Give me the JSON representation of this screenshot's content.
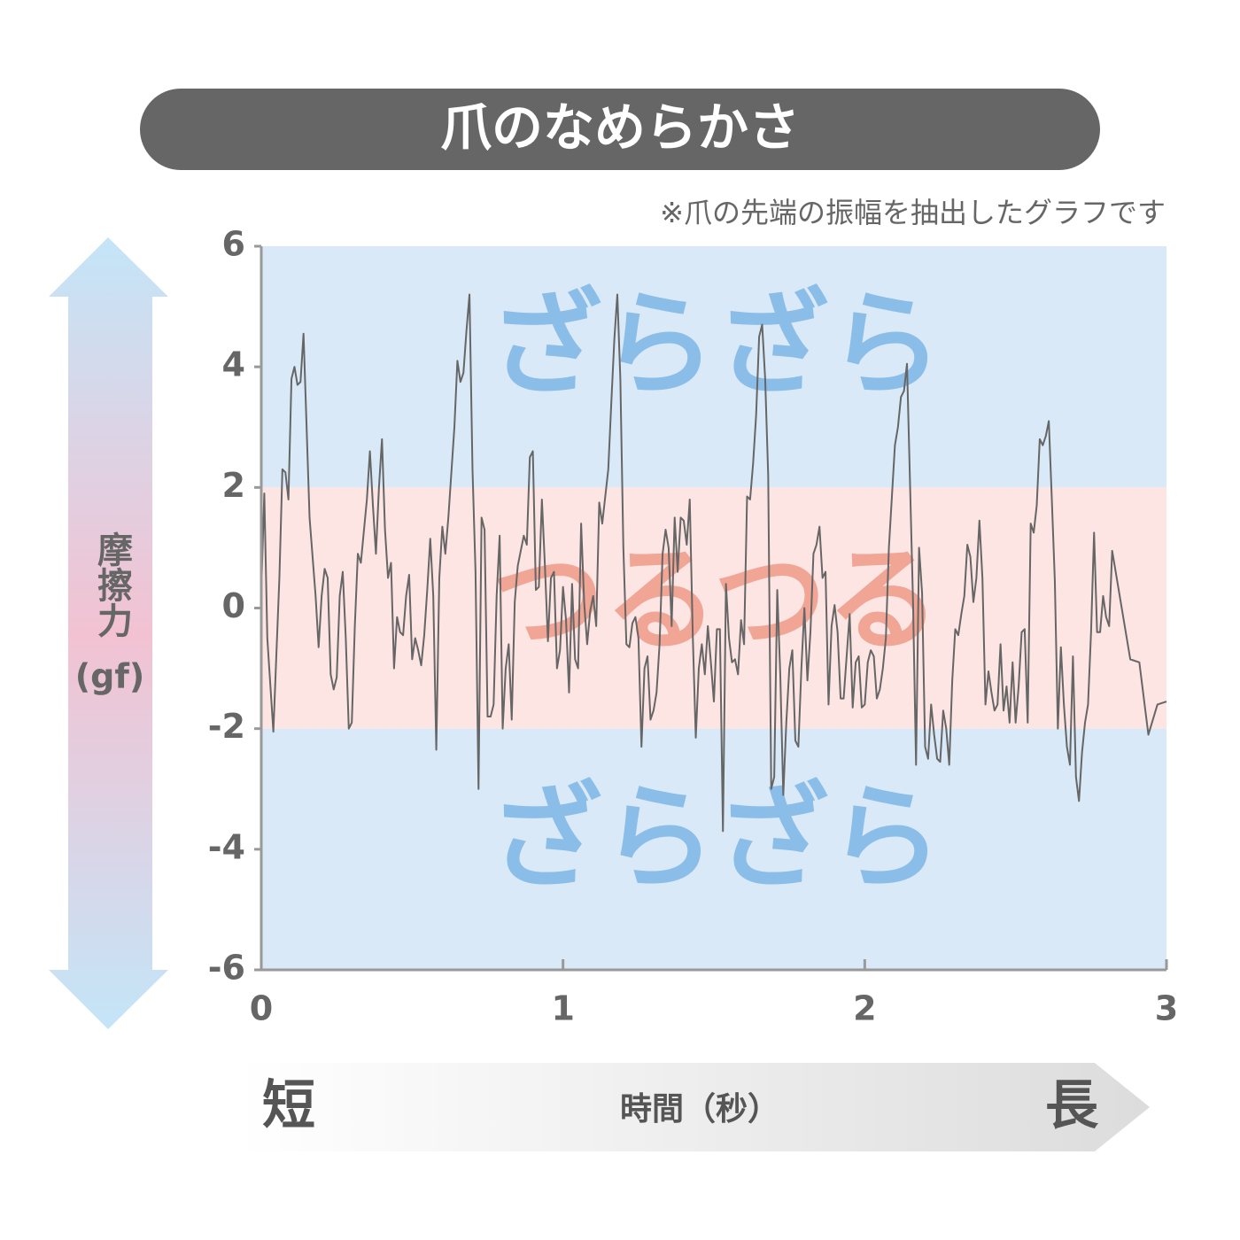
{
  "chart_data": {
    "type": "line",
    "title": "爪のなめらかさ",
    "subtitle": "※爪の先端の振幅を抽出したグラフです",
    "ylabel": "摩擦力",
    "yunit": "(gf)",
    "xlabel": "時間（秒）",
    "x_start_label": "短",
    "x_end_label": "長",
    "ylim": [
      -6,
      6
    ],
    "yticks": [
      -6,
      -4,
      -2,
      0,
      2,
      4,
      6
    ],
    "xlim": [
      0,
      3
    ],
    "xticks": [
      0,
      1,
      2,
      3
    ],
    "bands": [
      {
        "from": 2,
        "to": 6,
        "label": "ざらざら",
        "color": "#d9e9f7",
        "label_color": "#8bbde9"
      },
      {
        "from": -2,
        "to": 2,
        "label": "つるつる",
        "color": "#fde5e3",
        "label_color": "#f0a595"
      },
      {
        "from": -6,
        "to": -2,
        "label": "ざらざら",
        "color": "#d9e9f7",
        "label_color": "#8bbde9"
      }
    ],
    "series": [
      {
        "color": "#666666",
        "x": [
          0,
          0.01,
          0.02,
          0.04,
          0.06,
          0.07,
          0.08,
          0.09,
          0.1,
          0.11,
          0.12,
          0.13,
          0.14,
          0.16,
          0.18,
          0.19,
          0.2,
          0.21,
          0.22,
          0.23,
          0.24,
          0.25,
          0.26,
          0.27,
          0.28,
          0.29,
          0.3,
          0.31,
          0.32,
          0.33,
          0.35,
          0.36,
          0.37,
          0.38,
          0.39,
          0.4,
          0.41,
          0.42,
          0.43,
          0.44,
          0.45,
          0.46,
          0.47,
          0.48,
          0.49,
          0.5,
          0.51,
          0.52,
          0.53,
          0.54,
          0.55,
          0.56,
          0.57,
          0.58,
          0.59,
          0.6,
          0.61,
          0.62,
          0.64,
          0.65,
          0.66,
          0.67,
          0.68,
          0.69,
          0.7,
          0.71,
          0.72,
          0.73,
          0.74,
          0.75,
          0.76,
          0.77,
          0.78,
          0.79,
          0.8,
          0.81,
          0.82,
          0.83,
          0.84,
          0.85,
          0.86,
          0.87,
          0.88,
          0.89,
          0.9,
          0.91,
          0.92,
          0.93,
          0.94,
          0.95,
          0.96,
          0.97,
          0.98,
          0.99,
          1.0,
          1.01,
          1.02,
          1.03,
          1.04,
          1.05,
          1.06,
          1.07,
          1.08,
          1.09,
          1.1,
          1.11,
          1.12,
          1.13,
          1.15,
          1.16,
          1.17,
          1.18,
          1.19,
          1.2,
          1.21,
          1.22,
          1.23,
          1.24,
          1.25,
          1.26,
          1.27,
          1.28,
          1.29,
          1.3,
          1.31,
          1.32,
          1.33,
          1.34,
          1.35,
          1.36,
          1.37,
          1.38,
          1.39,
          1.4,
          1.41,
          1.42,
          1.43,
          1.44,
          1.45,
          1.46,
          1.47,
          1.48,
          1.49,
          1.5,
          1.51,
          1.52,
          1.53,
          1.54,
          1.55,
          1.56,
          1.57,
          1.58,
          1.59,
          1.6,
          1.61,
          1.62,
          1.63,
          1.64,
          1.65,
          1.66,
          1.67,
          1.68,
          1.69,
          1.7,
          1.71,
          1.72,
          1.73,
          1.74,
          1.75,
          1.76,
          1.77,
          1.78,
          1.79,
          1.8,
          1.81,
          1.82,
          1.83,
          1.84,
          1.85,
          1.86,
          1.87,
          1.88,
          1.89,
          1.9,
          1.91,
          1.92,
          1.93,
          1.94,
          1.95,
          1.96,
          1.97,
          1.98,
          1.99,
          2.0,
          2.01,
          2.02,
          2.03,
          2.04,
          2.05,
          2.06,
          2.07,
          2.08,
          2.1,
          2.11,
          2.12,
          2.13,
          2.14,
          2.16,
          2.17,
          2.18,
          2.19,
          2.2,
          2.21,
          2.22,
          2.23,
          2.24,
          2.25,
          2.26,
          2.27,
          2.28,
          2.29,
          2.3,
          2.31,
          2.32,
          2.33,
          2.34,
          2.35,
          2.36,
          2.37,
          2.38,
          2.39,
          2.4,
          2.41,
          2.42,
          2.43,
          2.44,
          2.45,
          2.46,
          2.47,
          2.48,
          2.49,
          2.5,
          2.51,
          2.52,
          2.53,
          2.54,
          2.55,
          2.56,
          2.57,
          2.58,
          2.59,
          2.6,
          2.61,
          2.62,
          2.63,
          2.64,
          2.65,
          2.66,
          2.67,
          2.68,
          2.69,
          2.7,
          2.71,
          2.72,
          2.73,
          2.74,
          2.75,
          2.76,
          2.77,
          2.78,
          2.79,
          2.8,
          2.81,
          2.82,
          2.88,
          2.91,
          2.94,
          2.97,
          3.0
        ],
        "values": [
          0.3,
          1.9,
          -0.5,
          -2.05,
          0.5,
          2.3,
          2.25,
          1.8,
          3.8,
          4.0,
          3.7,
          3.75,
          4.55,
          1.5,
          0.2,
          -0.65,
          0.2,
          0.65,
          0.5,
          -1.1,
          -1.35,
          -1.15,
          0.2,
          0.6,
          -0.5,
          -2.0,
          -1.9,
          -0.3,
          0.9,
          0.75,
          1.8,
          2.6,
          1.7,
          0.9,
          2.0,
          2.8,
          1.3,
          0.5,
          0.75,
          -1.0,
          -0.15,
          -0.4,
          -0.45,
          0.2,
          0.55,
          -0.85,
          -0.5,
          -0.7,
          -0.95,
          -0.45,
          0.3,
          1.15,
          0.2,
          -2.35,
          0.5,
          1.35,
          0.9,
          1.5,
          3.0,
          4.1,
          3.75,
          3.9,
          4.6,
          5.2,
          2.3,
          0.6,
          -3.0,
          1.5,
          1.3,
          -1.8,
          -1.8,
          -1.6,
          0.2,
          1.2,
          -2.0,
          -1.0,
          -0.6,
          -1.85,
          0.1,
          0.7,
          0.95,
          1.2,
          1.05,
          2.5,
          2.6,
          0.3,
          0.35,
          1.8,
          0.7,
          -0.55,
          0.5,
          0.6,
          -1.0,
          -0.7,
          0.35,
          -0.2,
          -1.4,
          0.4,
          -0.85,
          -1.0,
          1.4,
          0.1,
          -0.6,
          -0.05,
          0.2,
          -0.3,
          1.75,
          1.4,
          2.3,
          3.4,
          4.45,
          5.2,
          3.8,
          1.0,
          -0.6,
          -0.65,
          -0.25,
          -0.15,
          -0.5,
          -2.3,
          -1.0,
          -0.8,
          -1.85,
          -1.7,
          -1.4,
          -0.6,
          0.9,
          1.3,
          1.0,
          -0.3,
          1.5,
          0.6,
          1.5,
          1.45,
          1.05,
          1.8,
          -0.45,
          -2.15,
          -1.0,
          -0.6,
          -1.1,
          -0.3,
          -0.9,
          -1.55,
          -0.35,
          -0.35,
          -3.7,
          0.4,
          -0.5,
          -0.9,
          -0.85,
          -1.1,
          -0.2,
          -0.6,
          1.85,
          1.8,
          2.4,
          3.2,
          4.5,
          4.7,
          3.8,
          2.2,
          -3.0,
          -2.8,
          0.3,
          -1.1,
          -3.1,
          -1.9,
          -1.0,
          -0.7,
          -2.2,
          -2.3,
          -1.0,
          0.0,
          -1.2,
          -0.4,
          0.9,
          1.05,
          1.35,
          0.5,
          0.6,
          -1.6,
          -0.3,
          0.05,
          -0.4,
          -1.5,
          -1.5,
          -0.8,
          -0.1,
          -1.65,
          -0.9,
          -0.8,
          -1.65,
          -1.6,
          -0.9,
          -0.7,
          -0.8,
          -1.5,
          -1.35,
          -1.0,
          -0.5,
          1.0,
          2.7,
          3.0,
          3.5,
          3.6,
          4.05,
          0.1,
          -2.6,
          1.0,
          0.25,
          -2.3,
          -2.5,
          -1.6,
          -2.1,
          -2.5,
          -2.55,
          -1.7,
          -2.0,
          -2.6,
          -1.2,
          -0.35,
          -0.45,
          -0.1,
          0.2,
          1.05,
          0.85,
          0.1,
          0.5,
          1.45,
          0.5,
          -1.6,
          -1.05,
          -1.4,
          -1.7,
          -1.6,
          -0.6,
          -1.7,
          -1.3,
          -1.9,
          -0.9,
          -1.9,
          -1.3,
          -0.4,
          -0.35,
          -1.9,
          1.4,
          1.25,
          1.7,
          2.8,
          2.7,
          2.85,
          3.1,
          1.8,
          0.45,
          -2.0,
          -0.65,
          -1.6,
          -2.3,
          -2.6,
          -0.8,
          -2.8,
          -3.2,
          -2.4,
          -1.9,
          -1.6,
          -0.4,
          1.25,
          -0.4,
          -0.4,
          0.2,
          -0.15,
          -0.3,
          0.95,
          -0.85,
          -0.9,
          -2.1,
          -1.6,
          -1.55
        ]
      }
    ]
  }
}
